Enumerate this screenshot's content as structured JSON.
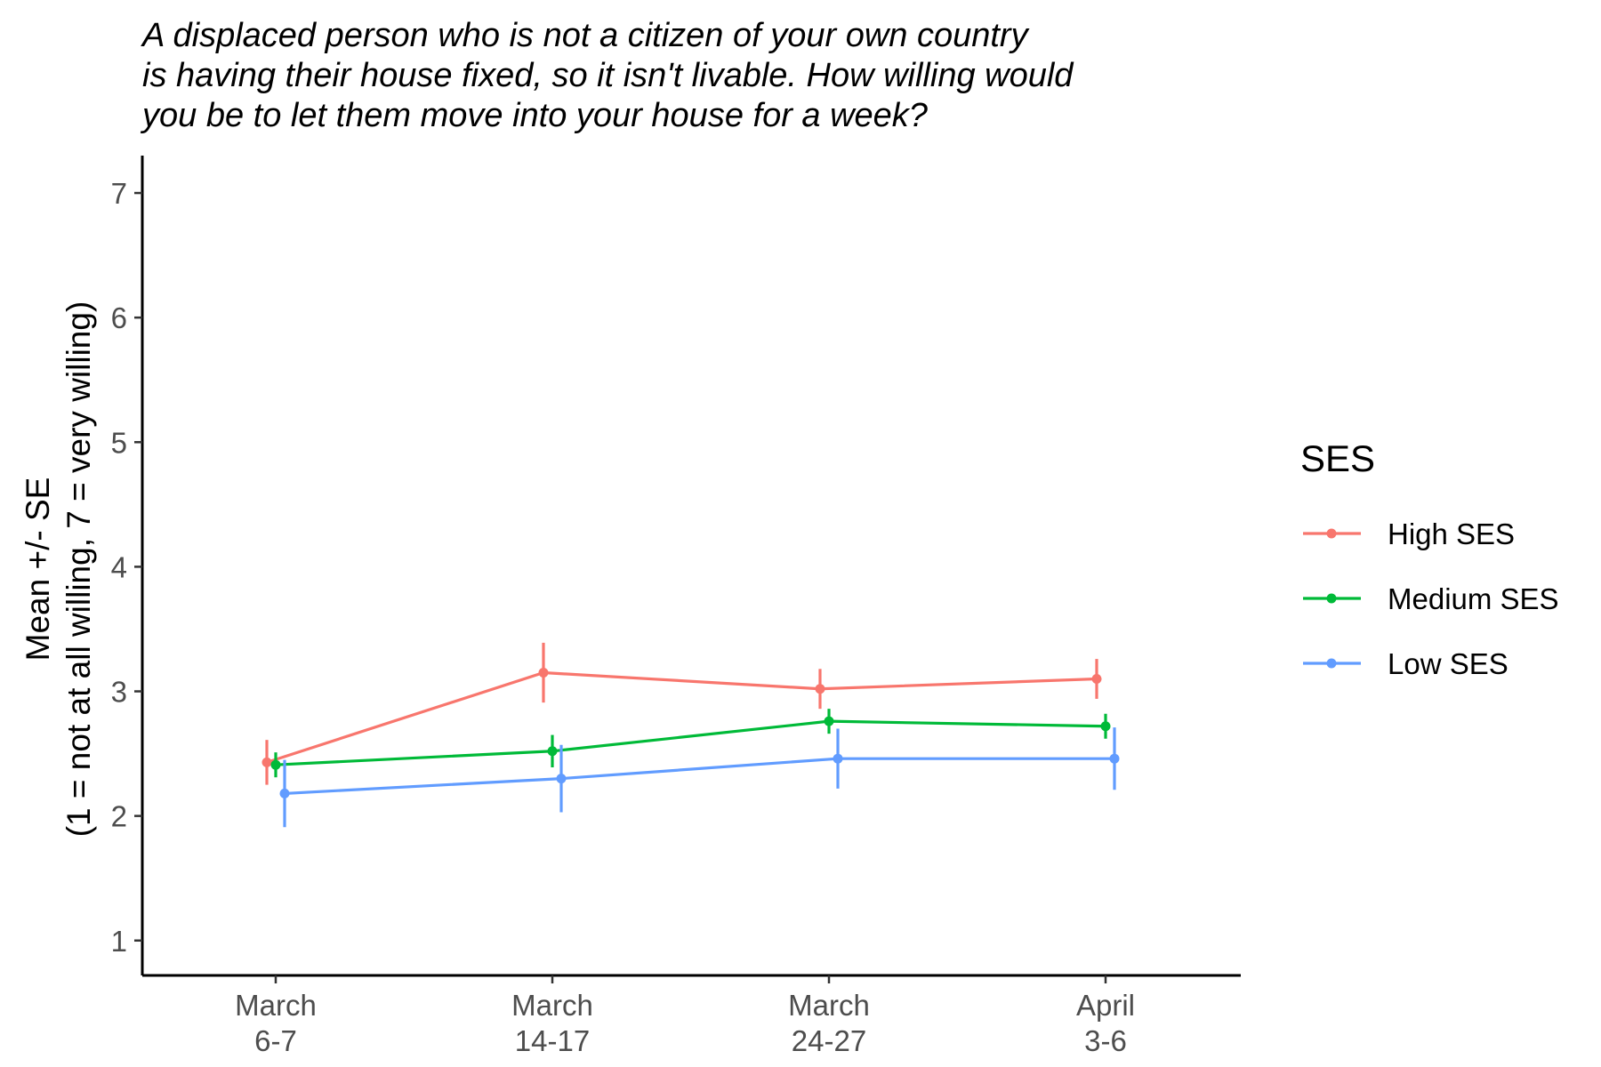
{
  "chart_data": {
    "type": "line",
    "title_lines": [
      "A displaced person who is not a citizen of your own country",
      "is having their house fixed, so it isn't livable. How willing would",
      "you be to let them move into your house for a week?"
    ],
    "ylabel_lines": [
      "Mean +/- SE",
      "(1 = not at all willing, 7 = very willing)"
    ],
    "xlabel": "",
    "categories": [
      [
        "March",
        "6-7"
      ],
      [
        "March",
        "14-17"
      ],
      [
        "March",
        "24-27"
      ],
      [
        "April",
        "3-6"
      ]
    ],
    "ylim": [
      0.72,
      7.3
    ],
    "yticks": [
      1,
      2,
      3,
      4,
      5,
      6,
      7
    ],
    "grid": false,
    "legend": {
      "title": "SES",
      "position": "right"
    },
    "series": [
      {
        "name": "High SES",
        "color": "#F8766D",
        "values": [
          2.43,
          3.15,
          3.02,
          3.1
        ],
        "se": [
          0.18,
          0.24,
          0.16,
          0.16
        ]
      },
      {
        "name": "Medium SES",
        "color": "#00BA38",
        "values": [
          2.41,
          2.52,
          2.76,
          2.72
        ],
        "se": [
          0.1,
          0.13,
          0.1,
          0.1
        ]
      },
      {
        "name": "Low SES",
        "color": "#619CFF",
        "values": [
          2.18,
          2.3,
          2.46,
          2.46
        ],
        "se": [
          0.27,
          0.27,
          0.24,
          0.25
        ]
      }
    ]
  }
}
